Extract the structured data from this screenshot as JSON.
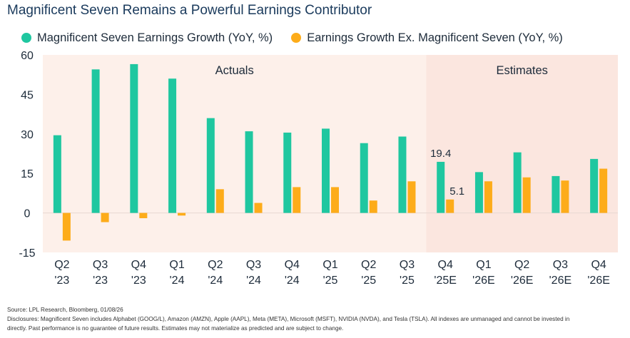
{
  "title": "Magnificent Seven Remains a Powerful Earnings Contributor",
  "chart_data": {
    "type": "bar",
    "categories": [
      [
        "Q2",
        "'23"
      ],
      [
        "Q3",
        "'23"
      ],
      [
        "Q4",
        "'23"
      ],
      [
        "Q1",
        "'24"
      ],
      [
        "Q2",
        "'24"
      ],
      [
        "Q3",
        "'24"
      ],
      [
        "Q4",
        "'24"
      ],
      [
        "Q1",
        "'25"
      ],
      [
        "Q2",
        "'25"
      ],
      [
        "Q3",
        "'25"
      ],
      [
        "Q4",
        "'25E"
      ],
      [
        "Q1",
        "'26E"
      ],
      [
        "Q2",
        "'26E"
      ],
      [
        "Q3",
        "'26E"
      ],
      [
        "Q4",
        "'26E"
      ]
    ],
    "series": [
      {
        "name": "Magnificent Seven Earnings Growth (YoY, %)",
        "color": "#1fc7a0",
        "values": [
          29.5,
          54.5,
          56.5,
          51,
          36,
          31,
          30.5,
          32,
          26.5,
          29,
          19.4,
          15.5,
          23,
          14,
          20.5
        ]
      },
      {
        "name": "Earnings Growth Ex. Magnificent Seven (YoY, %)",
        "color": "#fdac1a",
        "values": [
          -10.5,
          -3.5,
          -2,
          -1,
          9,
          3.8,
          9.8,
          9.8,
          4.7,
          12,
          5.1,
          12,
          13.5,
          12.3,
          16.8
        ]
      }
    ],
    "ylim": [
      -15,
      60
    ],
    "yticks": [
      60,
      45,
      30,
      15,
      0,
      -15
    ],
    "regions": [
      {
        "label": "Actuals",
        "from": 0,
        "to": 9,
        "color": "#fdf0ea"
      },
      {
        "label": "Estimates",
        "from": 10,
        "to": 14,
        "color": "#fbe6df"
      }
    ],
    "annotations": [
      {
        "series": 0,
        "index": 10,
        "text": "19.4"
      },
      {
        "series": 1,
        "index": 10,
        "text": "5.1"
      }
    ],
    "grid": false,
    "legend": "top"
  },
  "footer": {
    "source": "Source: LPL Research, Bloomberg, 01/08/26",
    "disclosure_1": "Disclosures: Magnificent Seven includes Alphabet (GOOG/L), Amazon (AMZN), Apple (AAPL), Meta (META), Microsoft (MSFT), NVIDIA (NVDA), and Tesla (TSLA). All indexes are unmanaged and cannot be invested in",
    "disclosure_2": "directly. Past performance is no guarantee of future results. Estimates may not materialize as predicted and are subject to change."
  }
}
